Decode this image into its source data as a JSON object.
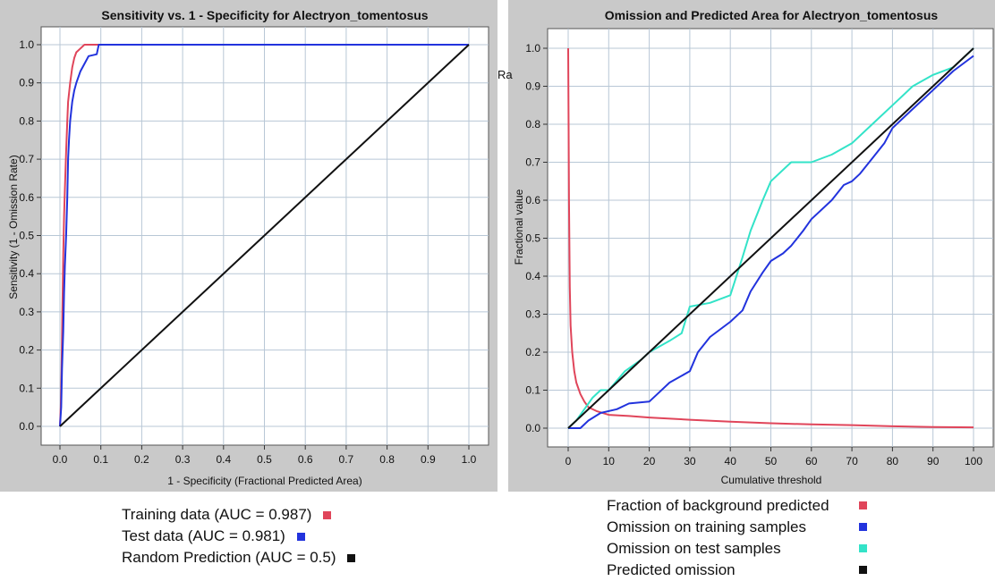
{
  "colors": {
    "panel_bg": "#c9c9c9",
    "plot_bg": "#ffffff",
    "grid": "#b8c7d6",
    "training": "#e0455a",
    "test": "#2233dd",
    "test_cyan": "#33e3c8",
    "black": "#111111"
  },
  "chart_data": [
    {
      "type": "line",
      "title": "Sensitivity vs. 1 - Specificity for Alectryon_tomentosus",
      "xlabel": "1 - Specificity  (Fractional Predicted Area)",
      "ylabel": "Sensitivity  (1 - Omission Rate)",
      "xlim": [
        0,
        1
      ],
      "ylim": [
        0,
        1
      ],
      "xticks": [
        "0.0",
        "0.1",
        "0.2",
        "0.3",
        "0.4",
        "0.5",
        "0.6",
        "0.7",
        "0.8",
        "0.9",
        "1.0"
      ],
      "yticks": [
        "0.0",
        "0.1",
        "0.2",
        "0.3",
        "0.4",
        "0.5",
        "0.6",
        "0.7",
        "0.8",
        "0.9",
        "1.0"
      ],
      "grid": true,
      "series": [
        {
          "name": "Training data (AUC = 0.987)",
          "color": "#e0455a",
          "x": [
            0,
            0.002,
            0.004,
            0.006,
            0.008,
            0.01,
            0.012,
            0.015,
            0.018,
            0.02,
            0.025,
            0.03,
            0.035,
            0.04,
            0.05,
            0.06,
            0.08,
            0.1,
            0.2,
            0.5,
            1.0
          ],
          "y": [
            0,
            0.05,
            0.15,
            0.3,
            0.45,
            0.55,
            0.62,
            0.72,
            0.8,
            0.85,
            0.9,
            0.94,
            0.965,
            0.98,
            0.99,
            1.0,
            1.0,
            1.0,
            1.0,
            1.0,
            1.0
          ]
        },
        {
          "name": "Test data (AUC = 0.981)",
          "color": "#2233dd",
          "x": [
            0,
            0.003,
            0.005,
            0.008,
            0.01,
            0.012,
            0.015,
            0.018,
            0.02,
            0.022,
            0.025,
            0.03,
            0.035,
            0.04,
            0.05,
            0.06,
            0.07,
            0.09,
            0.095,
            0.1,
            0.5,
            1.0
          ],
          "y": [
            0,
            0.05,
            0.15,
            0.25,
            0.35,
            0.42,
            0.5,
            0.6,
            0.7,
            0.75,
            0.8,
            0.85,
            0.88,
            0.9,
            0.93,
            0.95,
            0.97,
            0.975,
            1.0,
            1.0,
            1.0,
            1.0
          ]
        },
        {
          "name": "Random Prediction (AUC = 0.5)",
          "color": "#111111",
          "x": [
            0,
            1
          ],
          "y": [
            0,
            1
          ]
        }
      ],
      "legend": [
        {
          "label": "Training data (AUC = 0.987)",
          "color": "#e0455a"
        },
        {
          "label": "Test data (AUC = 0.981)",
          "color": "#2233dd"
        },
        {
          "label": "Random Prediction (AUC = 0.5)",
          "color": "#111111"
        }
      ]
    },
    {
      "type": "line",
      "title": "Omission and Predicted Area for Alectryon_tomentosus",
      "xlabel": "Cumulative threshold",
      "ylabel": "Fractional value",
      "right_label": "Ra",
      "xlim": [
        0,
        100
      ],
      "ylim": [
        0,
        1
      ],
      "xticks": [
        "0",
        "10",
        "20",
        "30",
        "40",
        "50",
        "60",
        "70",
        "80",
        "90",
        "100"
      ],
      "yticks": [
        "0.0",
        "0.1",
        "0.2",
        "0.3",
        "0.4",
        "0.5",
        "0.6",
        "0.7",
        "0.8",
        "0.9",
        "1.0"
      ],
      "grid": true,
      "series": [
        {
          "name": "Fraction of background predicted",
          "color": "#e0455a",
          "x": [
            0,
            0.2,
            0.4,
            0.6,
            1,
            1.5,
            2,
            3,
            4,
            5,
            7,
            10,
            15,
            20,
            30,
            40,
            50,
            60,
            70,
            80,
            90,
            100
          ],
          "y": [
            1.0,
            0.6,
            0.37,
            0.27,
            0.2,
            0.15,
            0.12,
            0.09,
            0.07,
            0.055,
            0.045,
            0.035,
            0.032,
            0.028,
            0.022,
            0.017,
            0.013,
            0.01,
            0.008,
            0.005,
            0.003,
            0.002
          ]
        },
        {
          "name": "Omission on training samples",
          "color": "#2233dd",
          "x": [
            0,
            3,
            5,
            8,
            12,
            15,
            20,
            22,
            25,
            30,
            32,
            35,
            40,
            43,
            45,
            48,
            50,
            53,
            55,
            58,
            60,
            65,
            68,
            70,
            72,
            75,
            78,
            80,
            85,
            90,
            95,
            100
          ],
          "y": [
            0,
            0,
            0.02,
            0.04,
            0.05,
            0.065,
            0.07,
            0.09,
            0.12,
            0.15,
            0.2,
            0.24,
            0.28,
            0.31,
            0.36,
            0.41,
            0.44,
            0.46,
            0.48,
            0.52,
            0.55,
            0.6,
            0.64,
            0.65,
            0.67,
            0.71,
            0.75,
            0.79,
            0.84,
            0.89,
            0.94,
            0.98
          ]
        },
        {
          "name": "Omission on test samples",
          "color": "#33e3c8",
          "x": [
            0,
            2,
            4,
            6,
            8,
            10,
            14,
            18,
            20,
            25,
            28,
            30,
            35,
            40,
            43,
            45,
            48,
            50,
            55,
            60,
            65,
            70,
            75,
            80,
            85,
            90,
            95,
            100
          ],
          "y": [
            0,
            0.02,
            0.05,
            0.08,
            0.1,
            0.1,
            0.15,
            0.18,
            0.2,
            0.23,
            0.25,
            0.32,
            0.33,
            0.35,
            0.45,
            0.52,
            0.6,
            0.65,
            0.7,
            0.7,
            0.72,
            0.75,
            0.8,
            0.85,
            0.9,
            0.93,
            0.95,
            1.0
          ]
        },
        {
          "name": "Predicted omission",
          "color": "#111111",
          "x": [
            0,
            100
          ],
          "y": [
            0,
            1
          ]
        }
      ],
      "legend": [
        {
          "label": "Fraction of background predicted",
          "color": "#e0455a"
        },
        {
          "label": "Omission on training samples",
          "color": "#2233dd"
        },
        {
          "label": "Omission on test samples",
          "color": "#33e3c8"
        },
        {
          "label": "Predicted omission",
          "color": "#111111"
        }
      ]
    }
  ]
}
